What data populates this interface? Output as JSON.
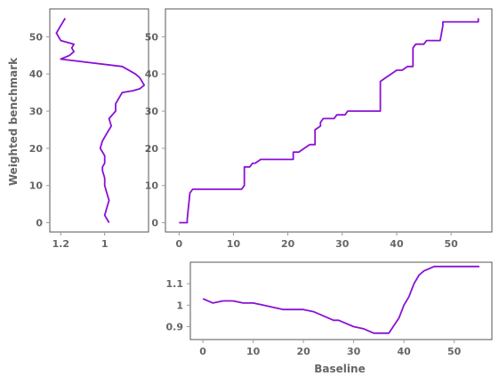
{
  "colors": {
    "line": "#8a10d6"
  },
  "axis_labels": {
    "x": "Baseline",
    "y": "Weighted benchmark"
  },
  "chart_data": [
    {
      "id": "main",
      "type": "line",
      "x": [
        0,
        1.5,
        1.5,
        2,
        2.5,
        3,
        11.5,
        12,
        12,
        13,
        13.5,
        14,
        15,
        16,
        20.5,
        21,
        21,
        22,
        23,
        24,
        24,
        25,
        25,
        25.5,
        26,
        26,
        26.5,
        27,
        28.5,
        29,
        30.5,
        31,
        32,
        37,
        37,
        38,
        40,
        41,
        42,
        42.5,
        43,
        43,
        43.5,
        45,
        45.5,
        46,
        48,
        48.5,
        48.5,
        49.5,
        55,
        55
      ],
      "y": [
        0,
        0,
        1,
        8,
        9,
        9,
        9,
        10,
        15,
        15,
        16,
        16,
        17,
        17,
        17,
        17,
        19,
        19,
        20,
        21,
        21,
        21,
        25,
        25.5,
        26,
        27,
        28,
        28,
        28,
        29,
        29,
        30,
        30,
        30,
        38,
        39,
        41,
        41,
        42,
        42,
        42,
        47,
        48,
        48,
        49,
        49,
        49,
        53,
        54,
        54,
        54,
        55
      ],
      "xlim": [
        -2.5,
        57.5
      ],
      "ylim": [
        -2.5,
        57.5
      ],
      "xticks": [
        0,
        10,
        20,
        30,
        40,
        50
      ],
      "yticks": [
        0,
        10,
        20,
        30,
        40,
        50
      ],
      "grid": false
    },
    {
      "id": "left",
      "type": "line",
      "x": [
        0.98,
        1.0,
        0.99,
        0.98,
        0.99,
        1.0,
        1.0,
        1.01,
        1.01,
        1.0,
        1.0,
        1.02,
        1.01,
        0.99,
        0.97,
        0.98,
        0.95,
        0.95,
        0.93,
        0.92,
        0.87,
        0.84,
        0.82,
        0.83,
        0.84,
        0.86,
        0.92,
        1.2,
        1.16,
        1.14,
        1.15,
        1.14,
        1.2,
        1.22,
        1.2,
        1.18
      ],
      "y": [
        0,
        2,
        4,
        6,
        8,
        10,
        12,
        14,
        15,
        16,
        18,
        20,
        22,
        24,
        26,
        28,
        30,
        32,
        34,
        35,
        35.5,
        36,
        37,
        38,
        39,
        40,
        42,
        44,
        45,
        46,
        47,
        48,
        49,
        51,
        53,
        55
      ],
      "xlim": [
        1.25,
        0.8
      ],
      "ylim": [
        -2.5,
        57.5
      ],
      "xticks": [
        1.2,
        1.0
      ],
      "yticks": [
        0,
        10,
        20,
        30,
        40,
        50
      ],
      "grid": false
    },
    {
      "id": "bottom",
      "type": "line",
      "x": [
        0,
        2,
        4,
        6,
        8,
        10,
        12,
        14,
        16,
        18,
        20,
        22,
        24,
        26,
        27,
        28,
        30,
        32,
        34,
        35,
        37,
        39,
        40,
        41,
        42,
        43,
        44,
        45,
        46,
        47,
        48,
        50,
        52,
        55
      ],
      "y": [
        1.03,
        1.01,
        1.02,
        1.02,
        1.01,
        1.01,
        1.0,
        0.99,
        0.98,
        0.98,
        0.98,
        0.97,
        0.95,
        0.93,
        0.93,
        0.92,
        0.9,
        0.89,
        0.87,
        0.87,
        0.87,
        0.94,
        1.0,
        1.04,
        1.1,
        1.14,
        1.16,
        1.17,
        1.18,
        1.18,
        1.18,
        1.18,
        1.18,
        1.18
      ],
      "xlim": [
        -2.5,
        57.5
      ],
      "ylim": [
        0.84,
        1.2
      ],
      "xticks": [
        0,
        10,
        20,
        30,
        40,
        50
      ],
      "yticks": [
        0.9,
        1.0,
        1.1
      ],
      "grid": false
    }
  ]
}
